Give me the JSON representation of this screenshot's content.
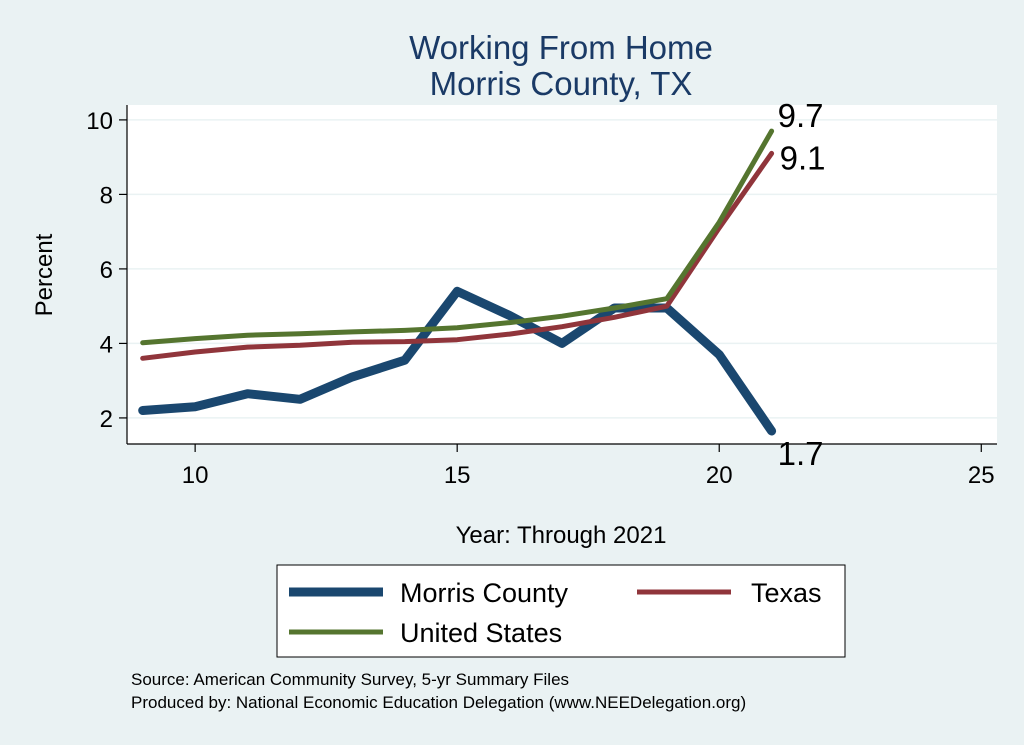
{
  "chart_data": {
    "type": "line",
    "title": [
      "Working From Home",
      "Morris County, TX"
    ],
    "xlabel": "Year: Through 2021",
    "ylabel": "Percent",
    "xlim": [
      8.7,
      25.3
    ],
    "ylim": [
      1.3,
      10.4
    ],
    "xticks": [
      10,
      15,
      20,
      25
    ],
    "yticks": [
      2,
      4,
      6,
      8,
      10
    ],
    "grid": true,
    "legend_position": "bottom",
    "x": [
      9,
      10,
      11,
      12,
      13,
      14,
      15,
      16,
      17,
      18,
      19,
      20,
      21
    ],
    "series": [
      {
        "name": "Morris County",
        "color": "#1a476f",
        "values": [
          2.2,
          2.3,
          2.65,
          2.5,
          3.1,
          3.55,
          5.4,
          4.75,
          4.0,
          4.95,
          4.95,
          3.7,
          1.65
        ],
        "end_label": "1.7"
      },
      {
        "name": "Texas",
        "color": "#90353b",
        "values": [
          3.6,
          3.77,
          3.9,
          3.95,
          4.03,
          4.05,
          4.1,
          4.25,
          4.45,
          4.7,
          5.0,
          7.1,
          9.1
        ],
        "end_label": "9.1"
      },
      {
        "name": "United States",
        "color": "#55752f",
        "values": [
          4.02,
          4.13,
          4.22,
          4.26,
          4.31,
          4.35,
          4.42,
          4.56,
          4.73,
          4.95,
          5.2,
          7.25,
          9.7
        ],
        "end_label": "9.7"
      }
    ]
  },
  "footer": {
    "source": "Source: American Community Survey, 5-yr Summary Files",
    "produced": "Produced by: National Economic Education Delegation (www.NEEDelegation.org)"
  }
}
